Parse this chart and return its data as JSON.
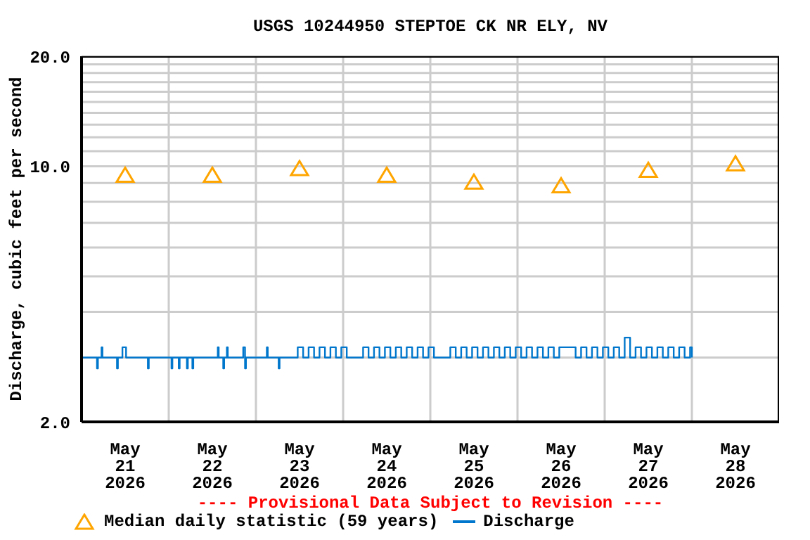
{
  "chart_data": {
    "type": "step",
    "title": "USGS 10244950 STEPTOE CK NR ELY, NV",
    "ylabel": "Discharge, cubic feet per second",
    "annotations": [
      "---- Provisional Data Subject to Revision ----"
    ],
    "log": "y",
    "grid": true,
    "legend": "bottom",
    "xlim": [
      "2026-05-21T00:00",
      "2026-05-29T00:00"
    ],
    "xticks": [
      {
        "value": "2026-05-21T12:00",
        "label": "May\n21\n2026"
      },
      {
        "value": "2026-05-22T12:00",
        "label": "May\n22\n2026"
      },
      {
        "value": "2026-05-23T12:00",
        "label": "May\n23\n2026"
      },
      {
        "value": "2026-05-24T12:00",
        "label": "May\n24\n2026"
      },
      {
        "value": "2026-05-25T12:00",
        "label": "May\n25\n2026"
      },
      {
        "value": "2026-05-26T12:00",
        "label": "May\n26\n2026"
      },
      {
        "value": "2026-05-27T12:00",
        "label": "May\n27\n2026"
      },
      {
        "value": "2026-05-28T12:00",
        "label": "May\n28\n2026"
      },
      {
        "value": "2026-05-22T00:00",
        "label": null
      },
      {
        "value": "2026-05-23T00:00",
        "label": null
      },
      {
        "value": "2026-05-24T00:00",
        "label": null
      },
      {
        "value": "2026-05-25T00:00",
        "label": null
      },
      {
        "value": "2026-05-26T00:00",
        "label": null
      },
      {
        "value": "2026-05-27T00:00",
        "label": null
      },
      {
        "value": "2026-05-28T00:00",
        "label": null
      }
    ],
    "ylim": [
      2,
      20
    ],
    "yticks": [
      {
        "value": 2,
        "label": "2.0"
      },
      {
        "value": 3,
        "label": null
      },
      {
        "value": 4,
        "label": null
      },
      {
        "value": 5,
        "label": null
      },
      {
        "value": 6,
        "label": null
      },
      {
        "value": 7,
        "label": null
      },
      {
        "value": 8,
        "label": null
      },
      {
        "value": 9,
        "label": null
      },
      {
        "value": 10,
        "label": "10.0"
      },
      {
        "value": 11,
        "label": null
      },
      {
        "value": 12,
        "label": null
      },
      {
        "value": 13,
        "label": null
      },
      {
        "value": 14,
        "label": null
      },
      {
        "value": 15,
        "label": null
      },
      {
        "value": 16,
        "label": null
      },
      {
        "value": 17,
        "label": null
      },
      {
        "value": 18,
        "label": null
      },
      {
        "value": 19,
        "label": null
      },
      {
        "value": 20,
        "label": "20.0"
      }
    ],
    "series": [
      {
        "name": "Median daily statistic (59 years)",
        "type": "scatter",
        "marker": "triangle",
        "color": "#ffa500",
        "x": [
          "2026-05-21T12:00",
          "2026-05-22T12:00",
          "2026-05-23T12:00",
          "2026-05-24T12:00",
          "2026-05-25T12:00",
          "2026-05-26T12:00",
          "2026-05-27T12:00",
          "2026-05-28T12:00"
        ],
        "values": [
          9.4,
          9.4,
          9.8,
          9.4,
          9.0,
          8.8,
          9.7,
          10.1
        ]
      },
      {
        "name": "Discharge",
        "color": "#0077cc",
        "x": [
          "2026-05-21T00:00",
          "2026-05-21T04:15",
          "2026-05-21T04:30",
          "2026-05-21T05:30",
          "2026-05-21T05:45",
          "2026-05-21T09:45",
          "2026-05-21T10:00",
          "2026-05-21T11:15",
          "2026-05-21T12:15",
          "2026-05-21T18:15",
          "2026-05-21T18:30",
          "2026-05-22T00:45",
          "2026-05-22T01:00",
          "2026-05-22T02:45",
          "2026-05-22T03:00",
          "2026-05-22T05:00",
          "2026-05-22T05:15",
          "2026-05-22T06:30",
          "2026-05-22T06:45",
          "2026-05-22T13:30",
          "2026-05-22T13:45",
          "2026-05-22T15:00",
          "2026-05-22T15:15",
          "2026-05-22T16:00",
          "2026-05-22T16:15",
          "2026-05-22T20:30",
          "2026-05-22T21:00",
          "2026-05-22T21:15",
          "2026-05-23T03:00",
          "2026-05-23T03:15",
          "2026-05-23T06:15",
          "2026-05-23T06:30",
          "2026-05-23T11:30",
          "2026-05-23T13:00",
          "2026-05-23T14:30",
          "2026-05-23T16:00",
          "2026-05-23T17:30",
          "2026-05-23T19:00",
          "2026-05-23T20:30",
          "2026-05-23T22:00",
          "2026-05-23T23:30",
          "2026-05-24T01:00",
          "2026-05-24T02:30",
          "2026-05-24T04:00",
          "2026-05-24T05:30",
          "2026-05-24T07:00",
          "2026-05-24T08:30",
          "2026-05-24T10:00",
          "2026-05-24T11:30",
          "2026-05-24T13:00",
          "2026-05-24T14:30",
          "2026-05-24T16:00",
          "2026-05-24T17:30",
          "2026-05-24T19:00",
          "2026-05-24T20:30",
          "2026-05-24T22:00",
          "2026-05-24T23:30",
          "2026-05-25T01:00",
          "2026-05-25T02:30",
          "2026-05-25T04:00",
          "2026-05-25T05:30",
          "2026-05-25T07:00",
          "2026-05-25T08:30",
          "2026-05-25T10:00",
          "2026-05-25T11:30",
          "2026-05-25T13:00",
          "2026-05-25T14:30",
          "2026-05-25T16:00",
          "2026-05-25T17:30",
          "2026-05-25T19:00",
          "2026-05-25T20:30",
          "2026-05-25T22:00",
          "2026-05-25T23:30",
          "2026-05-26T01:00",
          "2026-05-26T02:30",
          "2026-05-26T04:00",
          "2026-05-26T05:30",
          "2026-05-26T07:00",
          "2026-05-26T08:30",
          "2026-05-26T10:00",
          "2026-05-26T11:30",
          "2026-05-26T13:00",
          "2026-05-26T14:30",
          "2026-05-26T16:00",
          "2026-05-26T17:30",
          "2026-05-26T19:00",
          "2026-05-26T20:30",
          "2026-05-26T22:00",
          "2026-05-26T23:30",
          "2026-05-27T01:00",
          "2026-05-27T02:30",
          "2026-05-27T04:00",
          "2026-05-27T05:30",
          "2026-05-27T07:00",
          "2026-05-27T08:30",
          "2026-05-27T10:00",
          "2026-05-27T11:30",
          "2026-05-27T13:00",
          "2026-05-27T14:30",
          "2026-05-27T16:00",
          "2026-05-27T17:30",
          "2026-05-27T19:00",
          "2026-05-27T20:30",
          "2026-05-27T22:00",
          "2026-05-27T23:30",
          "2026-05-28T00:00"
        ],
        "values": [
          3.0,
          2.8,
          3.0,
          3.2,
          3.0,
          2.8,
          3.0,
          3.2,
          3.0,
          2.8,
          3.0,
          2.8,
          3.0,
          2.8,
          3.0,
          2.8,
          3.0,
          2.8,
          3.0,
          3.2,
          3.0,
          2.8,
          3.0,
          3.2,
          3.0,
          3.2,
          2.8,
          3.0,
          3.2,
          3.0,
          2.8,
          3.0,
          3.2,
          3.0,
          3.2,
          3.0,
          3.2,
          3.0,
          3.2,
          3.0,
          3.2,
          3.0,
          3.0,
          3.0,
          3.2,
          3.0,
          3.2,
          3.0,
          3.2,
          3.0,
          3.2,
          3.0,
          3.2,
          3.0,
          3.2,
          3.0,
          3.2,
          3.0,
          3.0,
          3.0,
          3.2,
          3.0,
          3.2,
          3.0,
          3.2,
          3.0,
          3.2,
          3.0,
          3.2,
          3.0,
          3.2,
          3.0,
          3.2,
          3.0,
          3.2,
          3.0,
          3.2,
          3.0,
          3.2,
          3.0,
          3.2,
          3.2,
          3.2,
          3.0,
          3.2,
          3.0,
          3.2,
          3.0,
          3.2,
          3.0,
          3.2,
          3.0,
          3.4,
          3.0,
          3.2,
          3.0,
          3.2,
          3.0,
          3.2,
          3.0,
          3.2,
          3.0,
          3.2,
          3.0,
          3.2,
          3.0
        ]
      }
    ]
  }
}
